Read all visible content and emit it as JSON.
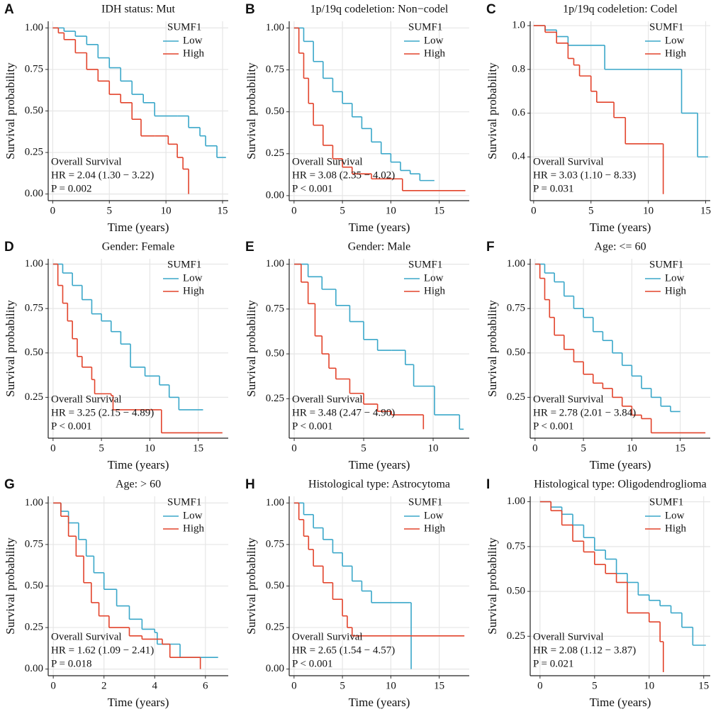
{
  "chart_data": [
    {
      "type": "line",
      "panel": "A",
      "title": "IDH status: Mut",
      "xlabel": "Time (years)",
      "ylabel": "Survival probability",
      "legend_title": "SUMF1",
      "annotations": [
        "Overall Survival",
        "HR = 2.04  (1.30 − 3.22)",
        "P = 0.002"
      ],
      "xlim": [
        -0.4,
        15.5
      ],
      "ylim": [
        -0.04,
        1.04
      ],
      "xticks": [
        0,
        5,
        10,
        15
      ],
      "yticks": [
        {
          "value": 0,
          "label": "0.00"
        },
        0.25,
        {
          "value": 0.5,
          "label": "0.50"
        },
        0.75,
        {
          "value": 1,
          "label": "1.00"
        }
      ],
      "grid": true,
      "series": [
        {
          "name": "Low",
          "color": "#3aa7c9",
          "x": [
            0,
            1,
            2,
            3,
            4,
            5,
            6,
            7,
            8,
            9,
            11,
            12,
            13,
            13.5,
            14.5,
            15.3
          ],
          "values": [
            1,
            0.98,
            0.95,
            0.9,
            0.82,
            0.76,
            0.68,
            0.6,
            0.55,
            0.47,
            0.47,
            0.4,
            0.35,
            0.29,
            0.22,
            0.22
          ]
        },
        {
          "name": "High",
          "color": "#e2432b",
          "x": [
            0,
            0.5,
            1,
            2,
            3,
            4,
            5,
            6,
            7,
            7.8,
            9,
            10.2,
            11,
            11.5,
            12
          ],
          "values": [
            1,
            0.97,
            0.93,
            0.85,
            0.75,
            0.68,
            0.6,
            0.55,
            0.45,
            0.35,
            0.35,
            0.3,
            0.22,
            0.15,
            0
          ]
        }
      ]
    },
    {
      "type": "line",
      "panel": "B",
      "title": "1p/19q codeletion: Non−codel",
      "xlabel": "Time (years)",
      "ylabel": "Survival probability",
      "legend_title": "SUMF1",
      "annotations": [
        "Overall Survival",
        "HR = 3.08  (2.35 − 4.02)",
        "P < 0.001"
      ],
      "xlim": [
        -0.5,
        18.1
      ],
      "ylim": [
        -0.03,
        1.04
      ],
      "xticks": [
        0,
        5,
        10,
        15
      ],
      "yticks": [
        {
          "value": 0,
          "label": "0.00"
        },
        0.25,
        {
          "value": 0.5,
          "label": "0.50"
        },
        0.75,
        {
          "value": 1,
          "label": "1.00"
        }
      ],
      "grid": true,
      "series": [
        {
          "name": "Low",
          "color": "#3aa7c9",
          "x": [
            0,
            1,
            2,
            3,
            4,
            5,
            6,
            7,
            8,
            9,
            10,
            11,
            12,
            13,
            14.5
          ],
          "values": [
            1,
            0.92,
            0.8,
            0.7,
            0.62,
            0.55,
            0.47,
            0.4,
            0.32,
            0.25,
            0.2,
            0.15,
            0.13,
            0.09,
            0.09
          ]
        },
        {
          "name": "High",
          "color": "#e2432b",
          "x": [
            0,
            0.5,
            1,
            1.5,
            2,
            3,
            4,
            5,
            6,
            8,
            11,
            11.2,
            17.7
          ],
          "values": [
            1,
            0.85,
            0.7,
            0.55,
            0.42,
            0.3,
            0.22,
            0.17,
            0.13,
            0.1,
            0.1,
            0.03,
            0.03
          ]
        }
      ]
    },
    {
      "type": "line",
      "panel": "C",
      "title": "1p/19q codeletion: Codel",
      "xlabel": "Time (years)",
      "ylabel": "Survival probability",
      "legend_title": "SUMF1",
      "annotations": [
        "Overall Survival",
        "HR = 3.03  (1.10 − 8.33)",
        "P = 0.031"
      ],
      "xlim": [
        -0.3,
        15.4
      ],
      "ylim": [
        0.2,
        1.02
      ],
      "xticks": [
        0,
        5,
        10,
        15
      ],
      "yticks": [
        0.4,
        0.6,
        0.8,
        {
          "value": 1,
          "label": "1.0"
        }
      ],
      "grid": true,
      "series": [
        {
          "name": "Low",
          "color": "#3aa7c9",
          "x": [
            0,
            1,
            2,
            3,
            6,
            6.2,
            12.8,
            12.9,
            14.2,
            14.3,
            15.2
          ],
          "values": [
            1,
            0.98,
            0.95,
            0.91,
            0.91,
            0.8,
            0.8,
            0.6,
            0.6,
            0.4,
            0.4
          ]
        },
        {
          "name": "High",
          "color": "#e2432b",
          "x": [
            0,
            1,
            2,
            3,
            3.5,
            4,
            5,
            5.5,
            7,
            8,
            11.2,
            11.3
          ],
          "values": [
            1,
            0.97,
            0.92,
            0.85,
            0.82,
            0.77,
            0.7,
            0.65,
            0.58,
            0.46,
            0.46,
            0.23
          ]
        }
      ]
    },
    {
      "type": "line",
      "panel": "D",
      "title": "Gender: Female",
      "xlabel": "Time (years)",
      "ylabel": "Survival probability",
      "legend_title": "SUMF1",
      "annotations": [
        "Overall Survival",
        "HR = 3.25  (2.15 − 4.89)",
        "P < 0.001"
      ],
      "xlim": [
        -0.5,
        18.1
      ],
      "ylim": [
        0.02,
        1.03
      ],
      "xticks": [
        0,
        5,
        10,
        15
      ],
      "yticks": [
        0.25,
        {
          "value": 0.5,
          "label": "0.50"
        },
        0.75,
        {
          "value": 1,
          "label": "1.00"
        }
      ],
      "grid": true,
      "series": [
        {
          "name": "Low",
          "color": "#3aa7c9",
          "x": [
            0,
            1,
            2,
            3,
            4,
            5,
            6,
            7,
            8,
            9.5,
            11,
            12,
            13,
            15.5
          ],
          "values": [
            1,
            0.95,
            0.88,
            0.8,
            0.72,
            0.68,
            0.62,
            0.55,
            0.42,
            0.37,
            0.32,
            0.25,
            0.18,
            0.18
          ]
        },
        {
          "name": "High",
          "color": "#e2432b",
          "x": [
            0,
            0.5,
            1,
            1.5,
            2,
            2.5,
            3,
            4,
            4.3,
            6,
            6.2,
            11,
            11.2,
            17.5
          ],
          "values": [
            1,
            0.88,
            0.78,
            0.68,
            0.58,
            0.48,
            0.42,
            0.35,
            0.27,
            0.26,
            0.18,
            0.18,
            0.05,
            0.05
          ]
        }
      ]
    },
    {
      "type": "line",
      "panel": "E",
      "title": "Gender: Male",
      "xlabel": "Time (years)",
      "ylabel": "Survival probability",
      "legend_title": "SUMF1",
      "annotations": [
        "Overall Survival",
        "HR = 3.48  (2.47 − 4.90)",
        "P < 0.001"
      ],
      "xlim": [
        -0.36,
        12.6
      ],
      "ylim": [
        0.03,
        1.03
      ],
      "xticks": [
        0,
        5,
        10
      ],
      "yticks": [
        0.25,
        {
          "value": 0.5,
          "label": "0.50"
        },
        0.75,
        {
          "value": 1,
          "label": "1.00"
        }
      ],
      "grid": true,
      "series": [
        {
          "name": "Low",
          "color": "#3aa7c9",
          "x": [
            0,
            1,
            2,
            3,
            4,
            5,
            6,
            7,
            8,
            8.6,
            10.1,
            11.9,
            12.2
          ],
          "values": [
            1,
            0.93,
            0.86,
            0.77,
            0.68,
            0.58,
            0.52,
            0.52,
            0.44,
            0.32,
            0.16,
            0.08,
            0.08
          ]
        },
        {
          "name": "High",
          "color": "#e2432b",
          "x": [
            0,
            0.5,
            1,
            1.5,
            2,
            2.5,
            3,
            4,
            5,
            6,
            7,
            9.3
          ],
          "values": [
            1,
            0.9,
            0.78,
            0.6,
            0.5,
            0.42,
            0.36,
            0.28,
            0.22,
            0.18,
            0.16,
            0.08
          ]
        }
      ]
    },
    {
      "type": "line",
      "panel": "F",
      "title": "Age: <= 60",
      "xlabel": "Time (years)",
      "ylabel": "Survival probability",
      "legend_title": "SUMF1",
      "annotations": [
        "Overall Survival",
        "HR = 2.78  (2.01 − 3.84)",
        "P < 0.001"
      ],
      "xlim": [
        -0.5,
        18.1
      ],
      "ylim": [
        0.02,
        1.03
      ],
      "xticks": [
        0,
        5,
        10,
        15
      ],
      "yticks": [
        0.25,
        {
          "value": 0.5,
          "label": "0.50"
        },
        0.75,
        {
          "value": 1,
          "label": "1.00"
        }
      ],
      "grid": true,
      "series": [
        {
          "name": "Low",
          "color": "#3aa7c9",
          "x": [
            0,
            1,
            2,
            3,
            4,
            5,
            6,
            7,
            8,
            9,
            10,
            11,
            12,
            13,
            14,
            15
          ],
          "values": [
            1,
            0.95,
            0.9,
            0.82,
            0.75,
            0.7,
            0.62,
            0.57,
            0.5,
            0.43,
            0.37,
            0.3,
            0.25,
            0.2,
            0.17,
            0.17
          ]
        },
        {
          "name": "High",
          "color": "#e2432b",
          "x": [
            0,
            0.5,
            1,
            1.5,
            2,
            3,
            4,
            5,
            6,
            7,
            8,
            9,
            10,
            11,
            12,
            17.6
          ],
          "values": [
            1,
            0.92,
            0.8,
            0.7,
            0.6,
            0.52,
            0.45,
            0.38,
            0.33,
            0.3,
            0.25,
            0.2,
            0.15,
            0.13,
            0.05,
            0.05
          ]
        }
      ]
    },
    {
      "type": "line",
      "panel": "G",
      "title": "Age: > 60",
      "xlabel": "Time (years)",
      "ylabel": "Survival probability",
      "legend_title": "SUMF1",
      "annotations": [
        "Overall Survival",
        "HR = 1.62  (1.09 − 2.41)",
        "P = 0.018"
      ],
      "xlim": [
        -0.2,
        6.9
      ],
      "ylim": [
        -0.04,
        1.04
      ],
      "xticks": [
        0,
        2,
        4,
        6
      ],
      "yticks": [
        {
          "value": 0,
          "label": "0.00"
        },
        0.25,
        {
          "value": 0.5,
          "label": "0.50"
        },
        0.75,
        {
          "value": 1,
          "label": "1.00"
        }
      ],
      "grid": true,
      "series": [
        {
          "name": "Low",
          "color": "#3aa7c9",
          "x": [
            0,
            0.3,
            0.6,
            1,
            1.3,
            1.6,
            2,
            2.5,
            3,
            3.5,
            4,
            4.1,
            5,
            6.5
          ],
          "values": [
            1,
            0.95,
            0.88,
            0.78,
            0.68,
            0.58,
            0.48,
            0.38,
            0.3,
            0.24,
            0.22,
            0.15,
            0.07,
            0.07
          ]
        },
        {
          "name": "High",
          "color": "#e2432b",
          "x": [
            0,
            0.3,
            0.6,
            0.9,
            1.2,
            1.5,
            1.8,
            2.2,
            3,
            3.5,
            4.3,
            4.6,
            5.8
          ],
          "values": [
            1,
            0.92,
            0.8,
            0.68,
            0.52,
            0.4,
            0.32,
            0.25,
            0.2,
            0.18,
            0.15,
            0.07,
            0
          ]
        }
      ]
    },
    {
      "type": "line",
      "panel": "H",
      "title": "Histological type: Astrocytoma",
      "xlabel": "Time (years)",
      "ylabel": "Survival probability",
      "legend_title": "SUMF1",
      "annotations": [
        "Overall Survival",
        "HR = 2.65  (1.54 − 4.57)",
        "P < 0.001"
      ],
      "xlim": [
        -0.5,
        18.1
      ],
      "ylim": [
        -0.04,
        1.04
      ],
      "xticks": [
        0,
        5,
        10,
        15
      ],
      "yticks": [
        {
          "value": 0,
          "label": "0.00"
        },
        0.25,
        {
          "value": 0.5,
          "label": "0.50"
        },
        0.75,
        {
          "value": 1,
          "label": "1.00"
        }
      ],
      "grid": true,
      "series": [
        {
          "name": "Low",
          "color": "#3aa7c9",
          "x": [
            0,
            1,
            2,
            3,
            4,
            5,
            6,
            7,
            8,
            12,
            12.1
          ],
          "values": [
            1,
            0.93,
            0.85,
            0.78,
            0.7,
            0.62,
            0.53,
            0.47,
            0.4,
            0.4,
            0
          ]
        },
        {
          "name": "High",
          "color": "#e2432b",
          "x": [
            0,
            0.5,
            1,
            1.5,
            2,
            3,
            4,
            5,
            5.5,
            6,
            17.6
          ],
          "values": [
            1,
            0.9,
            0.8,
            0.72,
            0.62,
            0.52,
            0.42,
            0.32,
            0.25,
            0.2,
            0.2
          ]
        }
      ]
    },
    {
      "type": "line",
      "panel": "I",
      "title": "Histological type: Oligodendroglioma",
      "xlabel": "Time (years)",
      "ylabel": "Survival probability",
      "legend_title": "SUMF1",
      "annotations": [
        "Overall Survival",
        "HR = 2.08  (1.12 − 3.87)",
        "P = 0.021"
      ],
      "xlim": [
        -0.9,
        15.6
      ],
      "ylim": [
        0.03,
        1.03
      ],
      "xticks": [
        0,
        5,
        10,
        15
      ],
      "yticks": [
        0.25,
        {
          "value": 0.5,
          "label": "0.50"
        },
        0.75,
        {
          "value": 1,
          "label": "1.00"
        }
      ],
      "grid": true,
      "series": [
        {
          "name": "Low",
          "color": "#3aa7c9",
          "x": [
            0,
            1,
            2,
            3,
            4,
            5,
            6,
            7,
            8,
            9,
            10,
            11,
            12,
            13,
            14,
            15.2
          ],
          "values": [
            1,
            0.97,
            0.93,
            0.87,
            0.8,
            0.73,
            0.68,
            0.6,
            0.55,
            0.48,
            0.45,
            0.42,
            0.38,
            0.3,
            0.2,
            0.2
          ]
        },
        {
          "name": "High",
          "color": "#e2432b",
          "x": [
            0,
            1,
            2,
            3,
            4,
            5,
            6,
            7,
            8,
            10,
            11,
            11.3
          ],
          "values": [
            1,
            0.95,
            0.87,
            0.78,
            0.72,
            0.65,
            0.6,
            0.55,
            0.38,
            0.33,
            0.22,
            0.05
          ]
        }
      ]
    }
  ]
}
